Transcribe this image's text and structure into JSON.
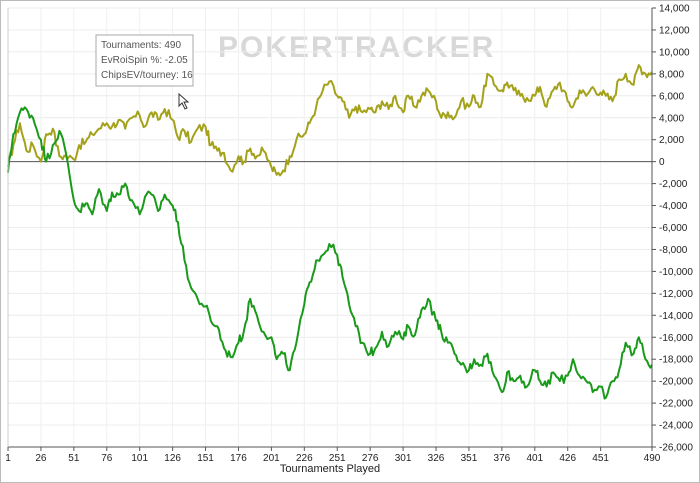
{
  "chart_data": {
    "type": "line",
    "title": "",
    "xlabel": "Tournaments Played",
    "ylabel": "",
    "xlim": [
      1,
      490
    ],
    "ylim": [
      -26000,
      14000
    ],
    "x_ticks": [
      1,
      26,
      51,
      76,
      101,
      126,
      151,
      176,
      201,
      226,
      251,
      276,
      301,
      326,
      351,
      376,
      401,
      426,
      451,
      490
    ],
    "y_ticks": [
      14000,
      12000,
      10000,
      8000,
      6000,
      4000,
      2000,
      0,
      -2000,
      -4000,
      -6000,
      -8000,
      -10000,
      -12000,
      -14000,
      -16000,
      -18000,
      -20000,
      -22000,
      -24000,
      -26000
    ],
    "y_tick_labels": [
      "14,000",
      "12,000",
      "10,000",
      "8,000",
      "6,000",
      "4,000",
      "2,000",
      "0",
      "-2,000",
      "-4,000",
      "-6,000",
      "-8,000",
      "-10,000",
      "-12,000",
      "-14,000",
      "-16,000",
      "-18,000",
      "-20,000",
      "-22,000",
      "-24,000",
      "-26,000"
    ],
    "grid": true,
    "zero_line": true,
    "series": [
      {
        "color": "#a3a21a",
        "x": [
          1,
          5,
          10,
          15,
          20,
          26,
          30,
          35,
          40,
          45,
          51,
          55,
          60,
          65,
          70,
          76,
          80,
          85,
          90,
          95,
          101,
          105,
          110,
          115,
          120,
          126,
          130,
          135,
          140,
          145,
          151,
          155,
          160,
          165,
          170,
          176,
          180,
          185,
          190,
          195,
          201,
          205,
          210,
          215,
          220,
          226,
          230,
          235,
          240,
          245,
          251,
          255,
          260,
          265,
          270,
          276,
          280,
          285,
          290,
          295,
          301,
          305,
          310,
          315,
          320,
          326,
          330,
          335,
          340,
          345,
          351,
          355,
          360,
          365,
          370,
          376,
          380,
          385,
          390,
          395,
          401,
          405,
          410,
          415,
          420,
          426,
          430,
          435,
          440,
          445,
          451,
          455,
          460,
          465,
          470,
          476,
          480,
          485,
          490
        ],
        "y": [
          -500,
          1500,
          3500,
          1000,
          1500,
          0,
          2500,
          3000,
          500,
          500,
          200,
          1500,
          1800,
          2500,
          3000,
          3500,
          3200,
          3800,
          3000,
          4000,
          4200,
          3200,
          4500,
          3800,
          4800,
          3800,
          2200,
          2800,
          1800,
          3000,
          3200,
          1500,
          1000,
          800,
          -800,
          500,
          0,
          1200,
          500,
          1000,
          -500,
          -1200,
          -800,
          500,
          2000,
          2500,
          3500,
          5000,
          6500,
          7300,
          6000,
          5500,
          4000,
          5000,
          4500,
          4800,
          4500,
          5500,
          4800,
          6000,
          4500,
          6000,
          5000,
          6000,
          6500,
          5500,
          4000,
          4500,
          4000,
          5500,
          5000,
          6000,
          5000,
          8000,
          7000,
          6500,
          7200,
          6500,
          6000,
          5800,
          6000,
          6800,
          5000,
          6500,
          7200,
          5500,
          5000,
          6500,
          6000,
          6800,
          6300,
          6000,
          5500,
          7500,
          8000,
          7000,
          8800,
          8000,
          8200
        ]
      },
      {
        "color": "#1a9a1a",
        "x": [
          1,
          5,
          10,
          15,
          20,
          26,
          30,
          35,
          40,
          45,
          51,
          55,
          60,
          65,
          70,
          76,
          80,
          85,
          90,
          95,
          101,
          105,
          110,
          115,
          120,
          126,
          130,
          135,
          140,
          145,
          151,
          155,
          160,
          165,
          170,
          176,
          180,
          185,
          190,
          195,
          201,
          205,
          210,
          215,
          220,
          226,
          230,
          235,
          240,
          245,
          251,
          255,
          260,
          265,
          270,
          276,
          280,
          285,
          290,
          295,
          301,
          305,
          310,
          315,
          320,
          326,
          330,
          335,
          340,
          345,
          351,
          355,
          360,
          365,
          370,
          376,
          380,
          385,
          390,
          395,
          401,
          405,
          410,
          415,
          420,
          426,
          430,
          435,
          440,
          445,
          451,
          455,
          460,
          465,
          470,
          476,
          480,
          485,
          490
        ],
        "y": [
          -1000,
          2500,
          4500,
          4800,
          4000,
          2000,
          0,
          1500,
          2800,
          800,
          -3500,
          -4500,
          -3800,
          -4800,
          -2500,
          -4500,
          -2800,
          -3000,
          -2000,
          -3500,
          -4800,
          -3200,
          -3000,
          -4500,
          -3000,
          -4000,
          -5500,
          -9000,
          -11500,
          -12500,
          -13200,
          -14500,
          -15000,
          -17000,
          -17800,
          -16500,
          -15500,
          -12500,
          -14000,
          -15500,
          -16000,
          -18000,
          -17500,
          -19000,
          -16500,
          -13000,
          -11000,
          -9000,
          -8500,
          -7500,
          -8500,
          -10500,
          -13000,
          -15000,
          -16500,
          -17500,
          -17000,
          -15500,
          -16800,
          -15500,
          -16200,
          -15000,
          -15800,
          -13500,
          -12500,
          -14500,
          -15500,
          -16500,
          -17500,
          -18500,
          -19000,
          -18000,
          -18500,
          -17500,
          -19500,
          -21000,
          -19200,
          -20000,
          -19500,
          -20500,
          -19000,
          -20000,
          -20500,
          -19200,
          -20000,
          -19500,
          -18000,
          -19500,
          -20000,
          -21000,
          -20500,
          -21500,
          -20000,
          -19000,
          -16500,
          -17500,
          -16000,
          -18000,
          -18500
        ]
      }
    ],
    "tooltip": {
      "tournaments": "Tournaments: 490",
      "evroi": "EvRoiSpin %: -2.05",
      "chipsev": "ChipsEV/tourney: 16"
    },
    "watermark": "POKERTRACKER"
  }
}
